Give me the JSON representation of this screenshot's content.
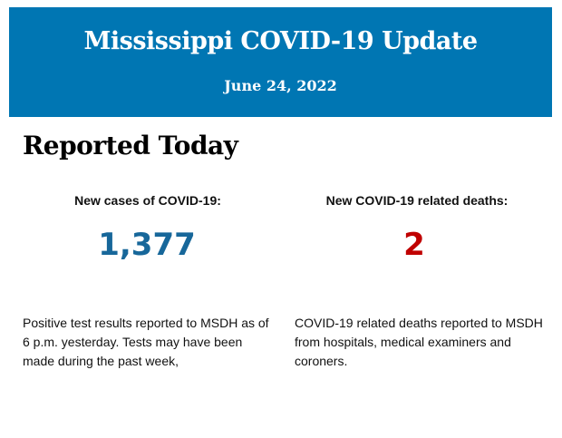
{
  "header": {
    "title": "Mississippi COVID-19 Update",
    "date": "June 24, 2022",
    "background": "#0076b3"
  },
  "section_title": "Reported Today",
  "cases": {
    "label": "New cases of COVID-19:",
    "value": "1,377",
    "color": "#17679a",
    "description": "Positive test results reported to MSDH as of 6 p.m. yesterday. Tests may have been made during the past week,"
  },
  "deaths": {
    "label": "New COVID-19 related deaths:",
    "value": "2",
    "color": "#c00000",
    "description": "COVID-19 related deaths reported to MSDH from hospitals, medical examiners and coroners."
  }
}
